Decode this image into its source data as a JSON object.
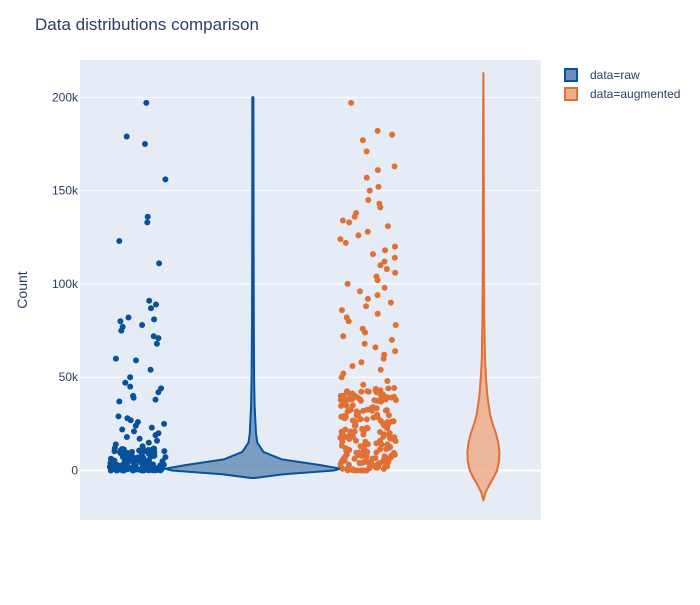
{
  "chart_data": {
    "type": "violin",
    "title": "Data distributions comparison",
    "xlabel": "",
    "ylabel": "Count",
    "ylim": [
      -26500,
      220000
    ],
    "yticks": [
      0,
      50000,
      100000,
      150000,
      200000
    ],
    "ytick_labels": [
      "0",
      "50k",
      "100k",
      "150k",
      "200k"
    ],
    "grid": true,
    "plot_bgcolor": "#E5ECF6",
    "legend_position": "top-right",
    "series": [
      {
        "name": "data=raw",
        "color": "#08519C",
        "fill": "#6A8EB9",
        "points": [
          197000,
          179000,
          175000,
          156000,
          136000,
          133000,
          123000,
          111000,
          91000,
          89000,
          87000,
          82000,
          81000,
          80000,
          78000,
          77000,
          75000,
          72000,
          71000,
          68000,
          60000,
          59000,
          54000,
          50000,
          47000,
          45000,
          44000,
          42000,
          40000,
          39000,
          38000,
          37000,
          29000,
          28000,
          27000,
          26000,
          25000,
          24000,
          23000,
          22000,
          21000,
          20000,
          19000,
          18000,
          17000,
          16000,
          15000,
          14000,
          13000,
          12000,
          11000,
          10000,
          9000,
          8000,
          7000,
          6000,
          5500,
          5000,
          4500,
          4000,
          3500,
          3000,
          2500,
          2000,
          1800,
          1500,
          1200,
          1000,
          800,
          600,
          400,
          300,
          200,
          100,
          0
        ],
        "violin_profile": [
          [
            -4000,
            0.02
          ],
          [
            -2000,
            0.35
          ],
          [
            0,
            0.92
          ],
          [
            1000,
            1.0
          ],
          [
            3000,
            0.75
          ],
          [
            6000,
            0.33
          ],
          [
            10000,
            0.12
          ],
          [
            15000,
            0.05
          ],
          [
            20000,
            0.035
          ],
          [
            25000,
            0.03
          ],
          [
            35000,
            0.02
          ],
          [
            50000,
            0.014
          ],
          [
            80000,
            0.01
          ],
          [
            120000,
            0.008
          ],
          [
            160000,
            0.007
          ],
          [
            200000,
            0.006
          ]
        ]
      },
      {
        "name": "data=augmented",
        "color": "#E07034",
        "fill": "#EDAD8B",
        "points": [
          197000,
          182000,
          180000,
          177000,
          171000,
          163000,
          161000,
          157000,
          152000,
          150000,
          145000,
          143000,
          141000,
          138000,
          136000,
          134000,
          133000,
          131000,
          128000,
          126000,
          124000,
          122000,
          120000,
          118000,
          116000,
          114000,
          112000,
          110000,
          108000,
          106000,
          104000,
          102000,
          100000,
          98000,
          96000,
          94000,
          92000,
          90000,
          88000,
          86000,
          84000,
          82000,
          80000,
          78000,
          76000,
          74000,
          72000,
          70000,
          68000,
          66000,
          64000,
          62000,
          60000,
          58000,
          56000,
          54000,
          52000,
          50000,
          48000,
          46000,
          44000,
          42000,
          40000,
          38000,
          36000,
          34000,
          32000,
          30000,
          28000,
          26000,
          24000,
          22000,
          20000,
          18000,
          16000,
          14000,
          12000,
          10000,
          8000,
          6000,
          4000,
          2000,
          0
        ],
        "violin_profile": [
          [
            -16000,
            0.0
          ],
          [
            -12000,
            0.12
          ],
          [
            -8000,
            0.35
          ],
          [
            -4000,
            0.62
          ],
          [
            0,
            0.85
          ],
          [
            5000,
            0.98
          ],
          [
            10000,
            1.0
          ],
          [
            15000,
            0.93
          ],
          [
            20000,
            0.78
          ],
          [
            25000,
            0.58
          ],
          [
            30000,
            0.42
          ],
          [
            40000,
            0.25
          ],
          [
            50000,
            0.16
          ],
          [
            60000,
            0.1
          ],
          [
            80000,
            0.06
          ],
          [
            100000,
            0.045
          ],
          [
            130000,
            0.035
          ],
          [
            160000,
            0.025
          ],
          [
            190000,
            0.015
          ],
          [
            213000,
            0.0
          ]
        ]
      }
    ]
  }
}
